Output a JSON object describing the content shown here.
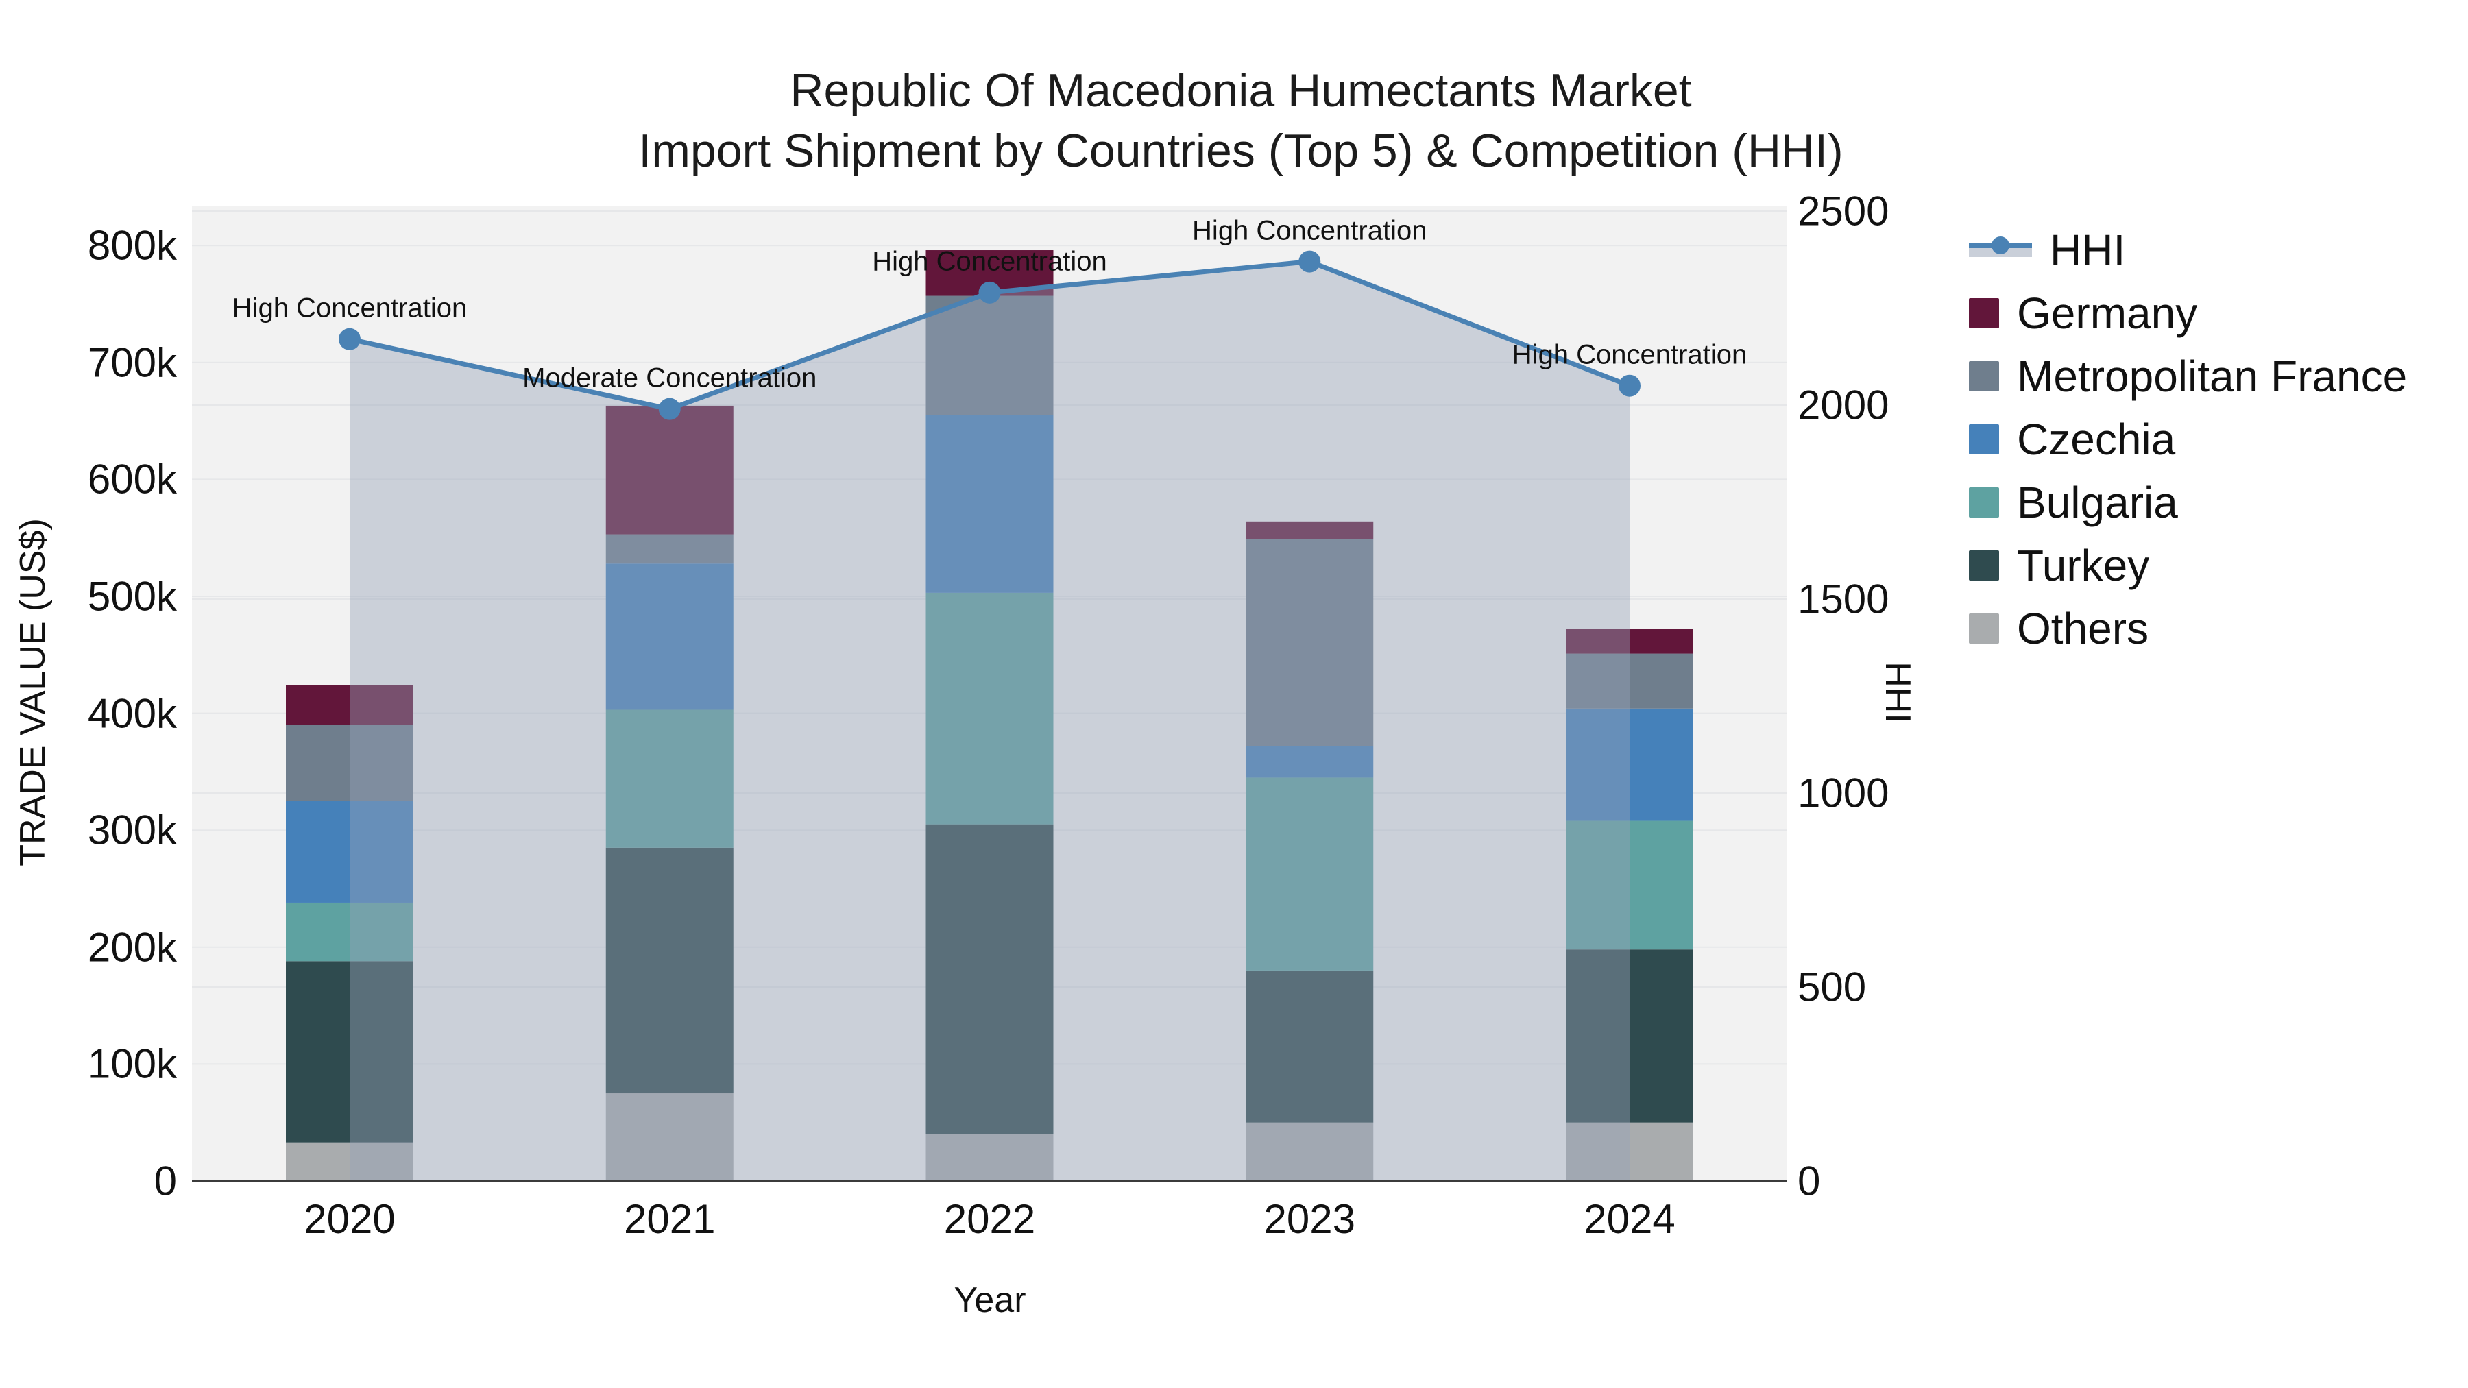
{
  "figure": {
    "title_line1": "Republic Of Macedonia Humectants Market",
    "title_line2": "Import Shipment by Countries (Top 5) & Competition (HHI)"
  },
  "chart_data": {
    "type": "bar",
    "subtype": "stacked-bar-with-line-overlay",
    "categories": [
      "2020",
      "2021",
      "2022",
      "2023",
      "2024"
    ],
    "series": [
      {
        "name": "Others",
        "color": "#a9acae",
        "values_usd_k": [
          33,
          75,
          40,
          50,
          50
        ]
      },
      {
        "name": "Turkey",
        "color": "#2f4b4f",
        "values_usd_k": [
          155,
          210,
          265,
          130,
          148
        ]
      },
      {
        "name": "Bulgaria",
        "color": "#5ea2a1",
        "values_usd_k": [
          50,
          118,
          198,
          165,
          110
        ]
      },
      {
        "name": "Czechia",
        "color": "#4581ba",
        "values_usd_k": [
          87,
          125,
          152,
          27,
          96
        ]
      },
      {
        "name": "Metropolitan France",
        "color": "#6f7e8d",
        "values_usd_k": [
          65,
          25,
          102,
          177,
          47
        ]
      },
      {
        "name": "Germany",
        "color": "#62163a",
        "values_usd_k": [
          34,
          110,
          39,
          15,
          21
        ]
      }
    ],
    "bar_totals_usd_k": [
      424,
      663,
      796,
      564,
      472
    ],
    "line_series": {
      "name": "HHI",
      "axis": "right",
      "color": "#4a82b4",
      "area_fill": "rgba(150,162,184,0.42)",
      "values": [
        2170,
        1990,
        2290,
        2370,
        2050
      ]
    },
    "annotations": [
      {
        "category": "2020",
        "label": "High Concentration"
      },
      {
        "category": "2021",
        "label": "Moderate Concentration"
      },
      {
        "category": "2022",
        "label": "High Concentration"
      },
      {
        "category": "2023",
        "label": "High Concentration"
      },
      {
        "category": "2024",
        "label": "High Concentration"
      }
    ],
    "xlabel": "Year",
    "ylabel_left": "TRADE VALUE (US$)",
    "ylabel_right": "HHI",
    "yticks_left": [
      "0",
      "100k",
      "200k",
      "300k",
      "400k",
      "500k",
      "600k",
      "700k",
      "800k"
    ],
    "yticks_right": [
      "0",
      "500",
      "1000",
      "1500",
      "2000",
      "2500"
    ],
    "ylim_left_usd_k": [
      0,
      834
    ],
    "ylim_right": [
      0,
      2515
    ],
    "grid": true,
    "legend_position": "right",
    "legend": [
      {
        "label": "HHI",
        "type": "line"
      },
      {
        "label": "Germany",
        "type": "swatch"
      },
      {
        "label": "Metropolitan France",
        "type": "swatch"
      },
      {
        "label": "Czechia",
        "type": "swatch"
      },
      {
        "label": "Bulgaria",
        "type": "swatch"
      },
      {
        "label": "Turkey",
        "type": "swatch"
      },
      {
        "label": "Others",
        "type": "swatch"
      }
    ]
  },
  "colors": {
    "plot_bg": "#f2f2f2",
    "grid": "#e6e7e9",
    "axis_line": "#3b3b3b",
    "legend_band": "#c9cfd9",
    "text": "#111111"
  }
}
